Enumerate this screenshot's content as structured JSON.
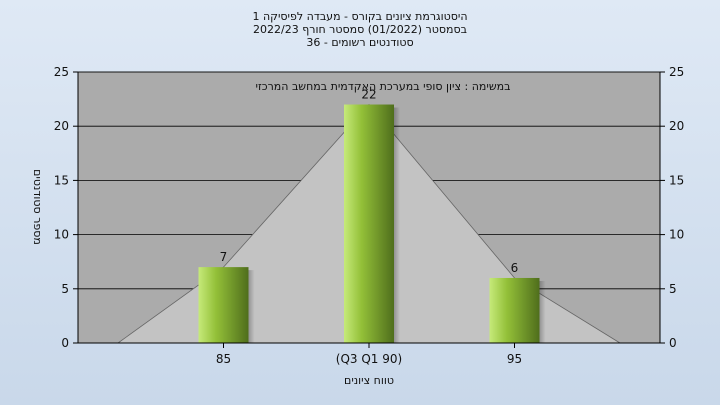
{
  "chart_data": {
    "type": "bar",
    "title_lines": [
      "היסטוגרמת ציונים בקורס - מעבדה לפיסיקה 1",
      "בסמסטר  (01/2022)  סמסטר חורף 2022/23",
      "סטודנטים רשומים - 36"
    ],
    "annotation": "במשימה : ציון סופי במערכת האקדמית במחשב המרכזי",
    "categories": [
      "85",
      "(Q3 Q1 90)",
      "95"
    ],
    "values": [
      7,
      22,
      6
    ],
    "data_labels": [
      "7",
      "22",
      "6"
    ],
    "xlabel": "טווח ציונים",
    "ylabel": "מספר סטודנטים",
    "ylim": [
      0,
      25
    ],
    "yticks": [
      0,
      5,
      10,
      15,
      20,
      25
    ],
    "grid": true,
    "colors": {
      "plot_bg": "#ababab",
      "area_fill": "#c3c3c3",
      "bar_light": "#c6ea7a",
      "bar_mid": "#93c038",
      "bar_dark": "#4f6e1c",
      "gridline": "#000000"
    }
  }
}
